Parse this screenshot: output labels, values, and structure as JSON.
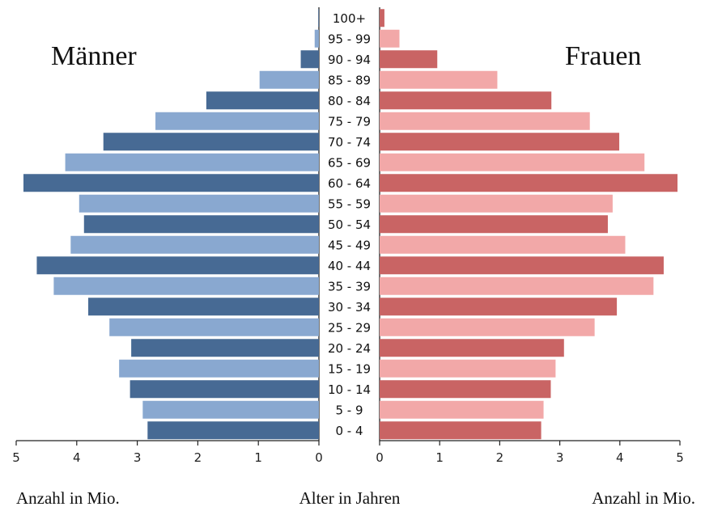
{
  "chart_data": {
    "type": "bar",
    "orientation": "horizontal",
    "layout": "population-pyramid",
    "categories": [
      "0 - 4",
      "5 - 9",
      "10 - 14",
      "15 - 19",
      "20 - 24",
      "25 - 29",
      "30 - 34",
      "35 - 39",
      "40 - 44",
      "45 - 49",
      "50 - 54",
      "55 - 59",
      "60 - 64",
      "65 - 69",
      "70 - 74",
      "75 - 79",
      "80 - 84",
      "85 - 89",
      "90 - 94",
      "95 - 99",
      "100+"
    ],
    "series": [
      {
        "name": "Männer",
        "side": "left",
        "colors": [
          "#476a94",
          "#89a8d0"
        ],
        "values": [
          2.83,
          2.91,
          3.12,
          3.3,
          3.1,
          3.46,
          3.81,
          4.38,
          4.66,
          4.1,
          3.88,
          3.96,
          4.88,
          4.19,
          3.56,
          2.7,
          1.86,
          0.98,
          0.3,
          0.07,
          0.01
        ]
      },
      {
        "name": "Frauen",
        "side": "right",
        "colors": [
          "#c96464",
          "#f2a8a8"
        ],
        "values": [
          2.69,
          2.73,
          2.85,
          2.93,
          3.07,
          3.58,
          3.95,
          4.56,
          4.73,
          4.09,
          3.8,
          3.88,
          4.96,
          4.41,
          3.99,
          3.5,
          2.86,
          1.96,
          0.96,
          0.33,
          0.08
        ]
      }
    ],
    "left_title": "Männer",
    "right_title": "Frauen",
    "left_xlabel": "Anzahl in Mio.",
    "center_label": "Alter in Jahren",
    "right_xlabel": "Anzahl in Mio.",
    "xlim": [
      0,
      5
    ],
    "xticks": [
      0,
      1,
      2,
      3,
      4,
      5
    ],
    "grid": false,
    "legend": "none"
  }
}
